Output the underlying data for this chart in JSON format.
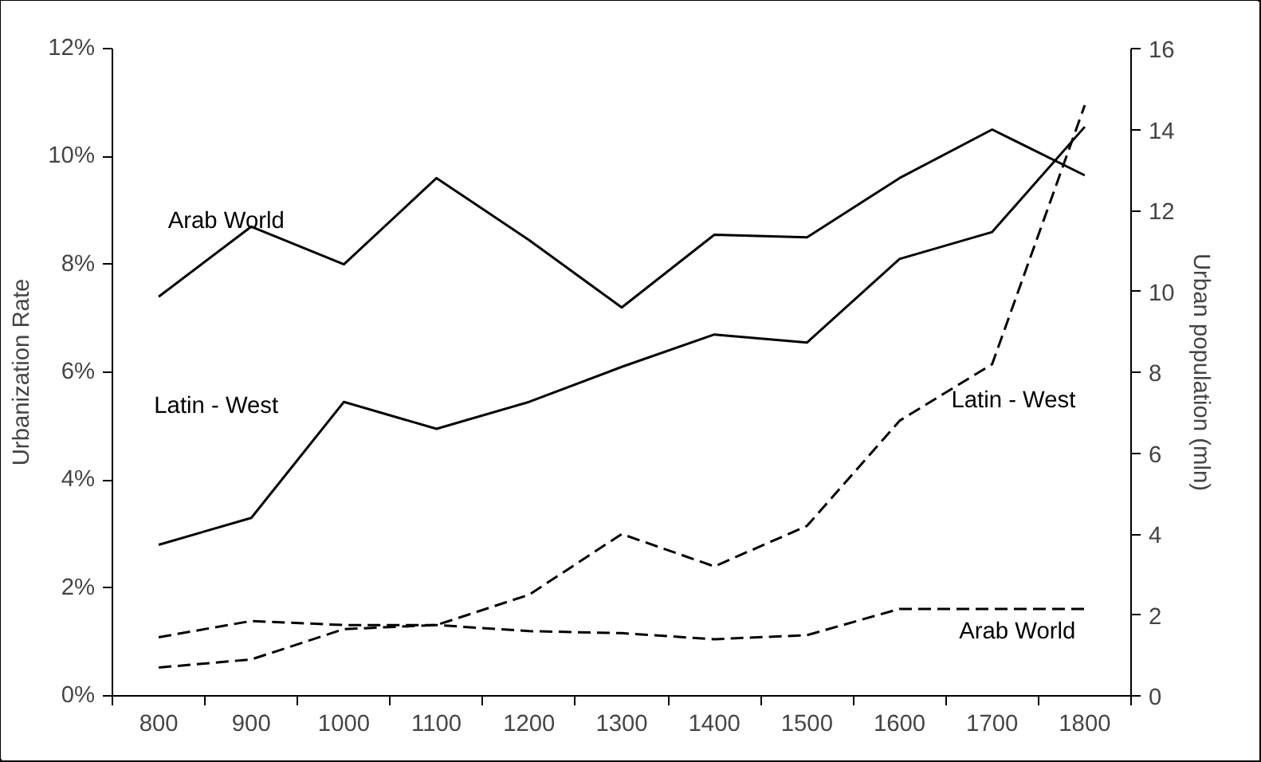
{
  "chart_data": {
    "type": "line",
    "ylabel": "Urbanization Rate",
    "y2label": "Urban population (mln)",
    "categories": [
      "800",
      "900",
      "1000",
      "1100",
      "1200",
      "1300",
      "1400",
      "1500",
      "1600",
      "1700",
      "1800"
    ],
    "ylim": [
      0,
      12
    ],
    "yticks": [
      {
        "value": 0,
        "label": "0%"
      },
      {
        "value": 2,
        "label": "2%"
      },
      {
        "value": 4,
        "label": "4%"
      },
      {
        "value": 6,
        "label": "6%"
      },
      {
        "value": 8,
        "label": "8%"
      },
      {
        "value": 10,
        "label": "10%"
      },
      {
        "value": 12,
        "label": "12%"
      }
    ],
    "y2lim": [
      0,
      16
    ],
    "y2ticks": [
      0,
      2,
      4,
      6,
      8,
      10,
      12,
      14,
      16
    ],
    "grid": false,
    "marker": "none",
    "series": [
      {
        "name": "Arab World",
        "color": "#000000",
        "line_style": "solid",
        "values": [
          7.4,
          8.7,
          8.0,
          9.6,
          8.45,
          7.2,
          8.55,
          8.5,
          9.6,
          10.5,
          9.65
        ]
      },
      {
        "name": "Latin - West",
        "color": "#000000",
        "line_style": "solid",
        "values": [
          2.8,
          3.3,
          5.45,
          4.95,
          5.45,
          6.1,
          6.7,
          6.55,
          8.1,
          8.6,
          10.55
        ]
      },
      {
        "name": "Latin - West",
        "color": "#000000",
        "line_style": "dashed",
        "axis": "y2",
        "values": [
          0.7,
          0.9,
          1.65,
          1.75,
          2.5,
          4.0,
          3.2,
          4.2,
          6.8,
          8.2,
          14.6
        ]
      },
      {
        "name": "Arab World",
        "color": "#000000",
        "line_style": "dashed",
        "axis": "y2",
        "values": [
          1.45,
          1.85,
          1.75,
          1.75,
          1.6,
          1.55,
          1.4,
          1.5,
          2.15,
          2.15,
          2.15
        ]
      }
    ]
  }
}
